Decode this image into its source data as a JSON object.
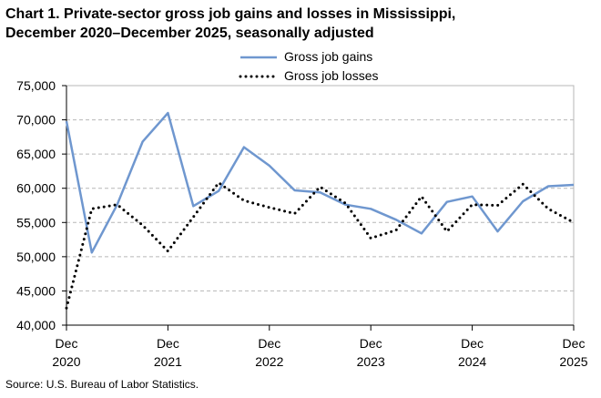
{
  "chart_title": {
    "line1": "Chart 1. Private-sector gross job gains and losses in Mississippi,",
    "line2": "December 2020–December 2025, seasonally adjusted"
  },
  "source_note": "Source: U.S. Bureau of Labor Statistics.",
  "colors": {
    "gains": "#6f97cf",
    "losses": "#000000",
    "grid": "#b7b7b7",
    "axis": "#000000"
  },
  "chart_data": {
    "type": "line",
    "x": [
      "Dec 2020",
      "Mar 2021",
      "Jun 2021",
      "Sep 2021",
      "Dec 2021",
      "Mar 2022",
      "Jun 2022",
      "Sep 2022",
      "Dec 2022",
      "Mar 2023",
      "Jun 2023",
      "Sep 2023",
      "Dec 2023",
      "Mar 2024",
      "Jun 2024",
      "Sep 2024",
      "Dec 2024",
      "Mar 2025",
      "Jun 2025",
      "Sep 2025",
      "Dec 2025"
    ],
    "x_tick_labels": [
      {
        "month": "Dec",
        "year": "2020"
      },
      {
        "month": "Dec",
        "year": "2021"
      },
      {
        "month": "Dec",
        "year": "2022"
      },
      {
        "month": "Dec",
        "year": "2023"
      },
      {
        "month": "Dec",
        "year": "2024"
      },
      {
        "month": "Dec",
        "year": "2025"
      }
    ],
    "y_tick_labels": [
      "40,000",
      "45,000",
      "50,000",
      "55,000",
      "60,000",
      "65,000",
      "70,000",
      "75,000"
    ],
    "ylim": [
      40000,
      75000
    ],
    "grid": true,
    "legend_position": "top",
    "series": [
      {
        "name": "Gross job gains",
        "style": "solid",
        "values": [
          69800,
          50600,
          57600,
          66800,
          71000,
          57400,
          59600,
          66000,
          63300,
          59700,
          59400,
          57600,
          57000,
          55400,
          53400,
          58000,
          58800,
          53700,
          58100,
          60300,
          60500
        ]
      },
      {
        "name": "Gross job losses",
        "style": "dotted",
        "values": [
          42500,
          57000,
          57600,
          54600,
          50800,
          55800,
          60800,
          58200,
          57200,
          56300,
          60200,
          57800,
          52700,
          53900,
          58800,
          53700,
          57600,
          57500,
          60600,
          57000,
          55000
        ]
      }
    ]
  }
}
